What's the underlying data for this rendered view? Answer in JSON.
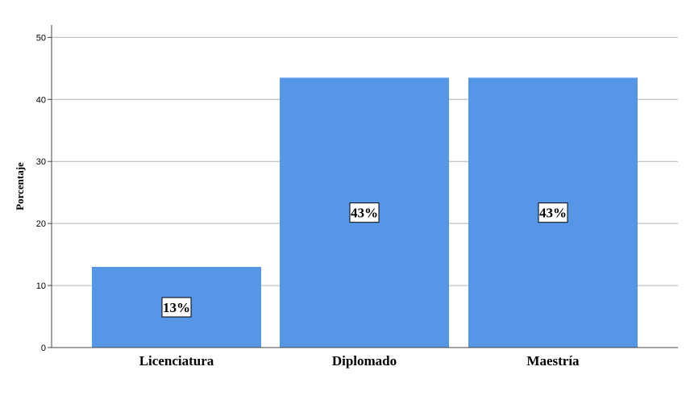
{
  "chart_data": {
    "type": "bar",
    "title": "",
    "xlabel": "",
    "ylabel": "Porcentaje",
    "categories": [
      "Licenciatura",
      "Diplomado",
      "Maestría"
    ],
    "values": [
      13.0,
      43.5,
      43.5
    ],
    "data_labels": [
      "13%",
      "43%",
      "43%"
    ],
    "ylim": [
      0,
      52
    ],
    "yticks": [
      0,
      10,
      20,
      30,
      40,
      50
    ],
    "grid": true,
    "colors": {
      "bar": "#5596e6",
      "grid": "#b4b4b4",
      "axis": "#444444"
    }
  }
}
